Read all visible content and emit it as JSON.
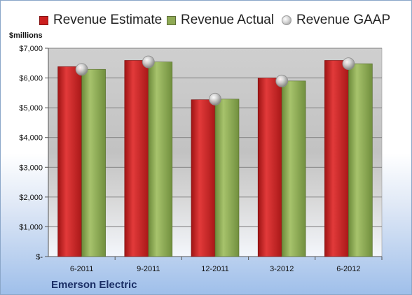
{
  "units_label": "$millions",
  "company": "Emerson Electric",
  "chart_data": {
    "type": "bar",
    "categories": [
      "6-2011",
      "9-2011",
      "12-2011",
      "3-2012",
      "6-2012"
    ],
    "series": [
      {
        "name": "Revenue Estimate",
        "kind": "bar",
        "color": "#cc1f1f",
        "values": [
          6380,
          6590,
          5270,
          6000,
          6590
        ]
      },
      {
        "name": "Revenue Actual",
        "kind": "bar",
        "color": "#8faa55",
        "values": [
          6290,
          6540,
          5290,
          5900,
          6480
        ]
      },
      {
        "name": "Revenue GAAP",
        "kind": "marker",
        "color": "#c8c8c8",
        "values": [
          6290,
          6540,
          5290,
          5900,
          6480
        ]
      }
    ],
    "yticks": [
      {
        "value": 0,
        "label": "$-"
      },
      {
        "value": 1000,
        "label": "$1,000"
      },
      {
        "value": 2000,
        "label": "$2,000"
      },
      {
        "value": 3000,
        "label": "$3,000"
      },
      {
        "value": 4000,
        "label": "$4,000"
      },
      {
        "value": 5000,
        "label": "$5,000"
      },
      {
        "value": 6000,
        "label": "$6,000"
      },
      {
        "value": 7000,
        "label": "$7,000"
      }
    ],
    "ylim": [
      0,
      7000
    ],
    "grid": true,
    "legend_position": "top"
  }
}
